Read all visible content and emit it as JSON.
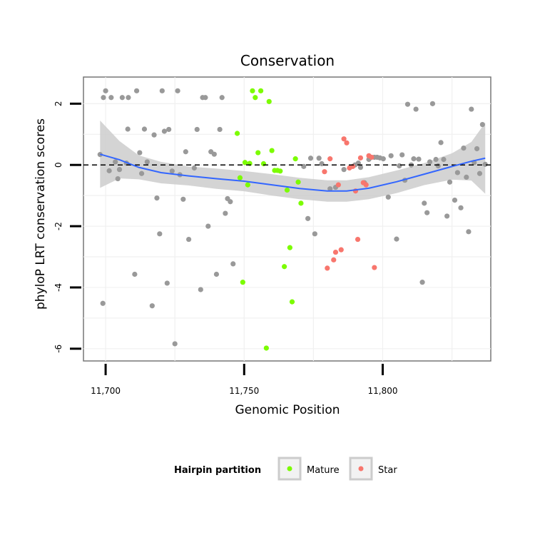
{
  "chart_data": {
    "type": "scatter",
    "title": "Conservation",
    "xlabel": "Genomic Position",
    "ylabel": "phyloP LRT conservation scores",
    "xlim": [
      11692,
      11839
    ],
    "ylim": [
      -6.4,
      2.87
    ],
    "x_ticks": [
      {
        "value": 11700,
        "label": "11,700"
      },
      {
        "value": 11750,
        "label": "11,750"
      },
      {
        "value": 11800,
        "label": "11,800"
      }
    ],
    "y_ticks": [
      {
        "value": 2,
        "label": "2"
      },
      {
        "value": 0,
        "label": "0"
      },
      {
        "value": -2,
        "label": "-2"
      },
      {
        "value": -4,
        "label": "-4"
      },
      {
        "value": -6,
        "label": "-6"
      }
    ],
    "reference_line": {
      "y": 0,
      "style": "dashed"
    },
    "legend": {
      "title": "Hairpin partition",
      "position": "bottom",
      "entries": [
        {
          "label": "Mature",
          "color": "#7cfc00"
        },
        {
          "label": "Star",
          "color": "#f8766d"
        }
      ]
    },
    "colors": {
      "other": "#999999",
      "Mature": "#7cfc00",
      "Star": "#f8766d",
      "smooth": "#3366ff",
      "band": "#cccccc"
    },
    "series": [
      {
        "name": "Other",
        "points": [
          [
            11698.0,
            0.34
          ],
          [
            11699.0,
            -4.52
          ],
          [
            11699.2,
            2.2
          ],
          [
            11700.0,
            2.42
          ],
          [
            11701.3,
            -0.19
          ],
          [
            11702.0,
            2.2
          ],
          [
            11703.5,
            0.1
          ],
          [
            11704.4,
            -0.45
          ],
          [
            11705.0,
            -0.15
          ],
          [
            11706.0,
            2.2
          ],
          [
            11707.5,
            0.06
          ],
          [
            11708.0,
            1.17
          ],
          [
            11708.2,
            2.2
          ],
          [
            11710.5,
            -3.57
          ],
          [
            11711.2,
            2.42
          ],
          [
            11712.3,
            0.4
          ],
          [
            11713.0,
            -0.28
          ],
          [
            11714.0,
            1.17
          ],
          [
            11715.0,
            0.1
          ],
          [
            11716.8,
            -4.6
          ],
          [
            11717.5,
            0.98
          ],
          [
            11718.5,
            -1.08
          ],
          [
            11719.5,
            -2.25
          ],
          [
            11720.4,
            2.42
          ],
          [
            11721.2,
            1.1
          ],
          [
            11722.2,
            -3.86
          ],
          [
            11722.8,
            1.16
          ],
          [
            11724.0,
            -0.2
          ],
          [
            11725.0,
            -5.84
          ],
          [
            11726.0,
            2.42
          ],
          [
            11726.8,
            -0.32
          ],
          [
            11728.0,
            -1.12
          ],
          [
            11728.9,
            0.43
          ],
          [
            11730.0,
            -2.43
          ],
          [
            11732.0,
            -0.1
          ],
          [
            11733.0,
            1.16
          ],
          [
            11734.3,
            -4.07
          ],
          [
            11735.0,
            2.2
          ],
          [
            11736.0,
            2.2
          ],
          [
            11737.0,
            -2.0
          ],
          [
            11738.0,
            0.43
          ],
          [
            11739.2,
            0.35
          ],
          [
            11740.0,
            -3.57
          ],
          [
            11741.2,
            1.16
          ],
          [
            11742.0,
            2.2
          ],
          [
            11743.2,
            -1.58
          ],
          [
            11744.0,
            -1.1
          ],
          [
            11745.0,
            -1.2
          ],
          [
            11746.0,
            -3.23
          ],
          [
            11771.5,
            -0.05
          ],
          [
            11773.0,
            -1.75
          ],
          [
            11774.0,
            0.22
          ],
          [
            11775.5,
            -2.25
          ],
          [
            11777.0,
            0.22
          ],
          [
            11778.0,
            0.04
          ],
          [
            11781.0,
            -0.78
          ],
          [
            11783.0,
            -0.73
          ],
          [
            11786.0,
            -0.15
          ],
          [
            11790.0,
            0.0
          ],
          [
            11791.2,
            0.06
          ],
          [
            11792.0,
            -0.08
          ],
          [
            11793.4,
            -0.58
          ],
          [
            11795.0,
            0.18
          ],
          [
            11797.0,
            0.25
          ],
          [
            11798.0,
            0.25
          ],
          [
            11799.0,
            0.23
          ],
          [
            11800.2,
            0.2
          ],
          [
            11802.0,
            -1.05
          ],
          [
            11803.0,
            0.3
          ],
          [
            11805.0,
            -2.42
          ],
          [
            11806.0,
            -0.03
          ],
          [
            11807.0,
            0.33
          ],
          [
            11808.0,
            -0.5
          ],
          [
            11809.0,
            1.98
          ],
          [
            11810.3,
            0.0
          ],
          [
            11811.2,
            0.2
          ],
          [
            11812.0,
            1.82
          ],
          [
            11813.0,
            0.19
          ],
          [
            11814.3,
            -3.83
          ],
          [
            11815.0,
            -1.25
          ],
          [
            11816.0,
            -1.56
          ],
          [
            11817.0,
            0.1
          ],
          [
            11818.0,
            2.0
          ],
          [
            11819.2,
            0.18
          ],
          [
            11820.0,
            -0.03
          ],
          [
            11821.0,
            0.73
          ],
          [
            11822.0,
            0.18
          ],
          [
            11823.2,
            -1.67
          ],
          [
            11824.2,
            -0.56
          ],
          [
            11826.0,
            -1.15
          ],
          [
            11827.0,
            -0.25
          ],
          [
            11828.2,
            -1.4
          ],
          [
            11829.2,
            0.55
          ],
          [
            11830.2,
            -0.4
          ],
          [
            11831.0,
            -2.18
          ],
          [
            11832.0,
            1.82
          ],
          [
            11833.0,
            0.08
          ],
          [
            11834.0,
            0.53
          ],
          [
            11835.0,
            -0.28
          ],
          [
            11836.0,
            1.32
          ],
          [
            11837.0,
            0.02
          ]
        ]
      },
      {
        "name": "Mature",
        "points": [
          [
            11747.5,
            1.03
          ],
          [
            11748.5,
            -0.42
          ],
          [
            11749.5,
            -3.83
          ],
          [
            11750.3,
            0.08
          ],
          [
            11751.3,
            -0.65
          ],
          [
            11752.0,
            0.05
          ],
          [
            11753.0,
            2.42
          ],
          [
            11754.0,
            2.2
          ],
          [
            11755.0,
            0.4
          ],
          [
            11756.0,
            2.42
          ],
          [
            11757.0,
            0.04
          ],
          [
            11758.0,
            -5.98
          ],
          [
            11759.0,
            2.07
          ],
          [
            11760.0,
            0.47
          ],
          [
            11761.0,
            -0.18
          ],
          [
            11762.0,
            -0.18
          ],
          [
            11763.0,
            -0.2
          ],
          [
            11764.5,
            -3.32
          ],
          [
            11765.5,
            -0.82
          ],
          [
            11766.5,
            -2.7
          ],
          [
            11767.3,
            -4.47
          ],
          [
            11768.5,
            0.2
          ],
          [
            11769.5,
            -0.56
          ],
          [
            11770.5,
            -1.25
          ]
        ]
      },
      {
        "name": "Star",
        "points": [
          [
            11779.0,
            -0.22
          ],
          [
            11780.0,
            -3.37
          ],
          [
            11781.0,
            0.2
          ],
          [
            11782.3,
            -3.1
          ],
          [
            11783.0,
            -2.85
          ],
          [
            11784.0,
            -0.65
          ],
          [
            11785.0,
            -2.77
          ],
          [
            11786.0,
            0.85
          ],
          [
            11787.0,
            0.72
          ],
          [
            11788.0,
            -0.1
          ],
          [
            11789.2,
            -0.05
          ],
          [
            11790.2,
            -0.85
          ],
          [
            11791.0,
            -2.43
          ],
          [
            11792.0,
            0.23
          ],
          [
            11793.0,
            -0.58
          ],
          [
            11794.0,
            -0.65
          ],
          [
            11795.0,
            0.3
          ],
          [
            11796.0,
            0.25
          ],
          [
            11797.0,
            -3.35
          ]
        ]
      }
    ],
    "smooth": [
      [
        11698,
        0.35
      ],
      [
        11705,
        0.17
      ],
      [
        11712,
        -0.08
      ],
      [
        11720,
        -0.25
      ],
      [
        11730,
        -0.36
      ],
      [
        11740,
        -0.45
      ],
      [
        11750,
        -0.53
      ],
      [
        11760,
        -0.65
      ],
      [
        11770,
        -0.77
      ],
      [
        11780,
        -0.85
      ],
      [
        11787,
        -0.85
      ],
      [
        11795,
        -0.76
      ],
      [
        11805,
        -0.55
      ],
      [
        11815,
        -0.3
      ],
      [
        11825,
        -0.05
      ],
      [
        11832,
        0.12
      ],
      [
        11837,
        0.22
      ]
    ],
    "smooth_upper": [
      [
        11698,
        1.45
      ],
      [
        11705,
        0.78
      ],
      [
        11712,
        0.31
      ],
      [
        11720,
        0.1
      ],
      [
        11730,
        -0.05
      ],
      [
        11740,
        -0.12
      ],
      [
        11750,
        -0.2
      ],
      [
        11760,
        -0.3
      ],
      [
        11770,
        -0.42
      ],
      [
        11780,
        -0.5
      ],
      [
        11787,
        -0.5
      ],
      [
        11795,
        -0.4
      ],
      [
        11805,
        -0.18
      ],
      [
        11815,
        0.06
      ],
      [
        11825,
        0.38
      ],
      [
        11832,
        0.75
      ],
      [
        11837,
        1.38
      ]
    ],
    "smooth_lower": [
      [
        11698,
        -0.75
      ],
      [
        11705,
        -0.44
      ],
      [
        11712,
        -0.47
      ],
      [
        11720,
        -0.6
      ],
      [
        11730,
        -0.67
      ],
      [
        11740,
        -0.78
      ],
      [
        11750,
        -0.86
      ],
      [
        11760,
        -1.0
      ],
      [
        11770,
        -1.12
      ],
      [
        11780,
        -1.2
      ],
      [
        11787,
        -1.2
      ],
      [
        11795,
        -1.12
      ],
      [
        11805,
        -0.92
      ],
      [
        11815,
        -0.66
      ],
      [
        11825,
        -0.48
      ],
      [
        11832,
        -0.51
      ],
      [
        11837,
        -0.94
      ]
    ]
  }
}
